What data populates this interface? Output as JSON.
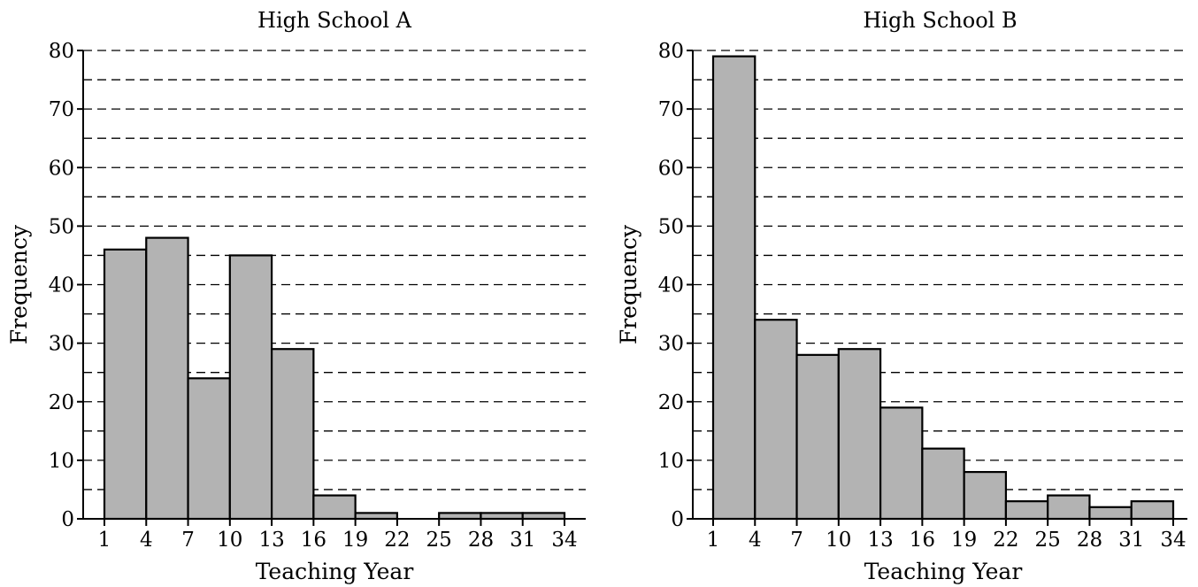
{
  "chart_data": [
    {
      "type": "bar",
      "subtype": "histogram",
      "title": "High School A",
      "xlabel": "Teaching Year",
      "ylabel": "Frequency",
      "bin_edges": [
        1,
        4,
        7,
        10,
        13,
        16,
        19,
        22,
        25,
        28,
        31,
        34
      ],
      "x_ticks": [
        1,
        4,
        7,
        10,
        13,
        16,
        19,
        22,
        25,
        28,
        31,
        34
      ],
      "values": [
        46,
        48,
        24,
        45,
        29,
        4,
        1,
        0,
        1,
        1,
        1
      ],
      "ylim": [
        0,
        80
      ],
      "y_ticks": [
        0,
        10,
        20,
        30,
        40,
        50,
        60,
        70,
        80
      ],
      "grid": "horizontal dashed every 5",
      "bar_color": "#b3b3b3"
    },
    {
      "type": "bar",
      "subtype": "histogram",
      "title": "High School B",
      "xlabel": "Teaching Year",
      "ylabel": "Frequency",
      "bin_edges": [
        1,
        4,
        7,
        10,
        13,
        16,
        19,
        22,
        25,
        28,
        31,
        34
      ],
      "x_ticks": [
        1,
        4,
        7,
        10,
        13,
        16,
        19,
        22,
        25,
        28,
        31,
        34
      ],
      "values": [
        79,
        34,
        28,
        29,
        19,
        12,
        8,
        3,
        4,
        2,
        3
      ],
      "ylim": [
        0,
        80
      ],
      "y_ticks": [
        0,
        10,
        20,
        30,
        40,
        50,
        60,
        70,
        80
      ],
      "grid": "horizontal dashed every 5",
      "bar_color": "#b3b3b3"
    }
  ]
}
